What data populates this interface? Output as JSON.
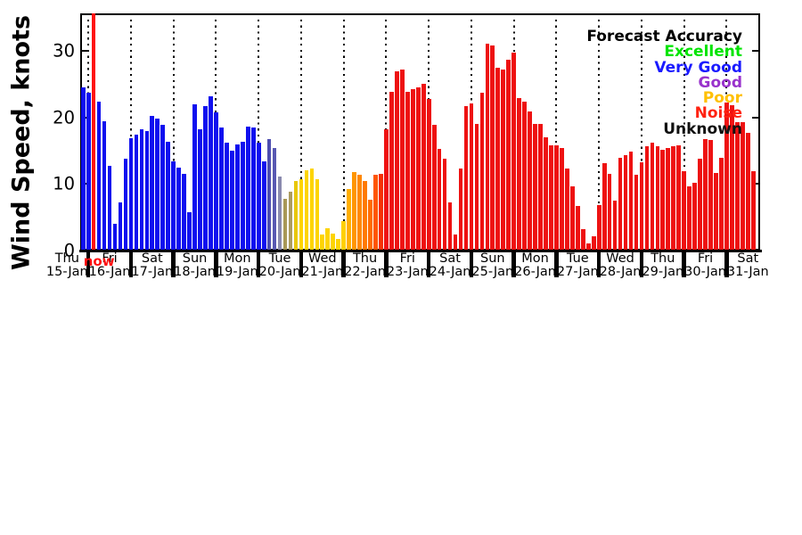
{
  "figure": {
    "legend": {
      "title": "Forecast Accuracy",
      "items": [
        {
          "label": "Excellent",
          "color": "#00e400"
        },
        {
          "label": "Very Good",
          "color": "#1a1aff"
        },
        {
          "label": "Good",
          "color": "#9933cc"
        },
        {
          "label": "Poor",
          "color": "#ffc000"
        },
        {
          "label": "Noise",
          "color": "#ff2211"
        },
        {
          "label": "Unknown",
          "color": "#111111"
        }
      ]
    },
    "now_marker": {
      "label": "now",
      "color": "#ff1111"
    }
  },
  "chart_data": {
    "type": "bar",
    "title": "",
    "xlabel": "",
    "ylabel": "Wind Speed, knots",
    "ylim": [
      0,
      35.7
    ],
    "yticks": [
      0,
      10,
      20,
      30
    ],
    "grid": "vertical-dotted-day-dividers",
    "legend_position": "top-right",
    "bar_unit": "knots",
    "days": [
      {
        "weekday": "Thu",
        "date": "15-Jan",
        "color": "#0f0fef",
        "values": [
          24.6
        ]
      },
      {
        "weekday": "Fri",
        "date": "16-Jan",
        "color": "#0f0fef",
        "values": [
          23.8,
          "now",
          22.4,
          19.5,
          12.7,
          4.0,
          7.2,
          13.8
        ]
      },
      {
        "weekday": "Sat",
        "date": "17-Jan",
        "color": "#0f0fef",
        "values": [
          16.9,
          17.5,
          18.3,
          18.0,
          20.3,
          19.9,
          18.9,
          16.4
        ]
      },
      {
        "weekday": "Sun",
        "date": "18-Jan",
        "color": "#0f0fef",
        "values": [
          13.4,
          12.5,
          11.5,
          5.8,
          22.0,
          18.3,
          21.8,
          23.2
        ]
      },
      {
        "weekday": "Mon",
        "date": "19-Jan",
        "color": "#0f0fef",
        "values": [
          20.8,
          18.5,
          16.2,
          15.0,
          16.0,
          16.4,
          18.7,
          18.5
        ]
      },
      {
        "weekday": "Tue",
        "date": "20-Jan",
        "colors": [
          "#0f0fef",
          "#0f0fef",
          "#4d4db0",
          "#5858b2",
          "#8a8aae",
          "#a89857",
          "#ac9c60",
          "#e8c70a"
        ],
        "values": [
          16.3,
          13.4,
          16.8,
          15.4,
          11.1,
          7.8,
          8.9,
          10.5
        ]
      },
      {
        "weekday": "Wed",
        "date": "21-Jan",
        "color": "#fdd400",
        "values": [
          10.7,
          12.1,
          12.4,
          10.7,
          2.4,
          3.4,
          2.5,
          1.8
        ]
      },
      {
        "weekday": "Thu",
        "date": "22-Jan",
        "colors": [
          "#ffd000",
          "#ffae00",
          "#ff9600",
          "#ff8800",
          "#ff7a00",
          "#ff6c00",
          "#ff5500",
          "#f53000"
        ],
        "values": [
          4.4,
          9.3,
          11.8,
          11.4,
          10.5,
          7.6,
          11.4,
          11.6
        ]
      },
      {
        "weekday": "Fri",
        "date": "23-Jan",
        "color": "#ee1111",
        "values": [
          18.3,
          23.9,
          27.0,
          27.2,
          23.9,
          24.3,
          24.5,
          25.1
        ]
      },
      {
        "weekday": "Sat",
        "date": "24-Jan",
        "color": "#ee1111",
        "values": [
          22.8,
          18.9,
          15.3,
          13.8,
          7.2,
          2.4,
          12.3,
          21.8
        ]
      },
      {
        "weekday": "Sun",
        "date": "25-Jan",
        "color": "#ee1111",
        "values": [
          22.2,
          19.0,
          23.8,
          31.2,
          30.9,
          27.5,
          27.3,
          28.7
        ]
      },
      {
        "weekday": "Mon",
        "date": "26-Jan",
        "color": "#ee1111",
        "values": [
          29.8,
          23.0,
          22.4,
          21.0,
          19.1,
          19.0,
          17.1,
          15.9
        ]
      },
      {
        "weekday": "Tue",
        "date": "27-Jan",
        "color": "#ee1111",
        "values": [
          15.8,
          15.5,
          12.3,
          9.6,
          6.7,
          3.2,
          1.1,
          2.2
        ]
      },
      {
        "weekday": "Wed",
        "date": "28-Jan",
        "color": "#ee1111",
        "values": [
          6.9,
          13.2,
          11.6,
          7.5,
          13.9,
          14.4,
          14.9,
          11.4
        ]
      },
      {
        "weekday": "Thu",
        "date": "29-Jan",
        "color": "#ee1111",
        "values": [
          13.3,
          15.7,
          16.2,
          15.7,
          15.2,
          15.5,
          15.7,
          15.9
        ]
      },
      {
        "weekday": "Fri",
        "date": "30-Jan",
        "color": "#ee1111",
        "values": [
          12.0,
          9.6,
          10.2,
          13.8,
          16.8,
          16.7,
          11.7,
          13.9
        ]
      },
      {
        "weekday": "Sat",
        "date": "31-Jan",
        "color": "#ee1111",
        "values": [
          22.3,
          21.9,
          19.3,
          19.3,
          17.7,
          12.0
        ]
      }
    ]
  }
}
